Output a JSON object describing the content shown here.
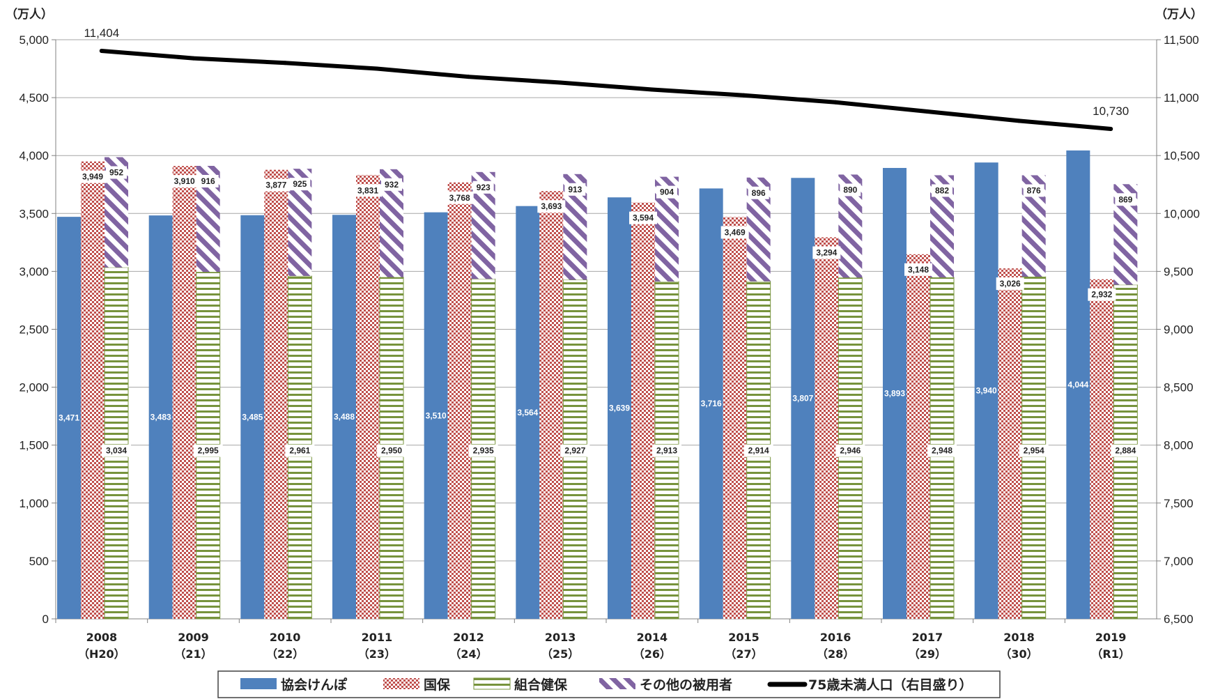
{
  "chart_data": {
    "type": "bar",
    "left_axis_unit": "（万人）",
    "right_axis_unit": "（万人）",
    "categories": [
      "2008",
      "2009",
      "2010",
      "2011",
      "2012",
      "2013",
      "2014",
      "2015",
      "2016",
      "2017",
      "2018",
      "2019"
    ],
    "category_sublabels": [
      "（H20）",
      "（21）",
      "（22）",
      "（23）",
      "（24）",
      "（25）",
      "（26）",
      "（27）",
      "（28）",
      "（29）",
      "（30）",
      "（R1）"
    ],
    "y_left": {
      "min": 0,
      "max": 5000,
      "step": 500,
      "ticks": [
        "0",
        "500",
        "1,000",
        "1,500",
        "2,000",
        "2,500",
        "3,000",
        "3,500",
        "4,000",
        "4,500",
        "5,000"
      ]
    },
    "y_right": {
      "min": 6500,
      "max": 11500,
      "step": 500,
      "ticks": [
        "6,500",
        "7,000",
        "7,500",
        "8,000",
        "8,500",
        "9,000",
        "9,500",
        "10,000",
        "10,500",
        "11,000",
        "11,500"
      ]
    },
    "grid": true,
    "legend_position": "bottom",
    "series": [
      {
        "name": "協会けんぽ",
        "kind": "bar",
        "color": "#4f81bd",
        "values": [
          3471,
          3483,
          3485,
          3488,
          3510,
          3564,
          3639,
          3716,
          3807,
          3893,
          3940,
          4044
        ],
        "labels": [
          "3,471",
          "3,483",
          "3,485",
          "3,488",
          "3,510",
          "3,564",
          "3,639",
          "3,716",
          "3,807",
          "3,893",
          "3,940",
          "4,044"
        ]
      },
      {
        "name": "国保",
        "kind": "bar",
        "color": "#c0504d",
        "values": [
          3949,
          3910,
          3877,
          3831,
          3768,
          3693,
          3594,
          3469,
          3294,
          3148,
          3026,
          2932
        ],
        "labels": [
          "3,949",
          "3,910",
          "3,877",
          "3,831",
          "3,768",
          "3,693",
          "3,594",
          "3,469",
          "3,294",
          "3,148",
          "3,026",
          "2,932"
        ]
      },
      {
        "name": "組合健保",
        "kind": "stack-base",
        "color": "#77933c",
        "values": [
          3034,
          2995,
          2961,
          2950,
          2935,
          2927,
          2913,
          2914,
          2946,
          2948,
          2954,
          2884
        ],
        "labels": [
          "3,034",
          "2,995",
          "2,961",
          "2,950",
          "2,935",
          "2,927",
          "2,913",
          "2,914",
          "2,946",
          "2,948",
          "2,954",
          "2,884"
        ]
      },
      {
        "name": "その他の被用者",
        "kind": "stack-top",
        "color": "#8064a2",
        "values": [
          952,
          916,
          925,
          932,
          923,
          913,
          904,
          896,
          890,
          882,
          876,
          869
        ],
        "labels": [
          "952",
          "916",
          "925",
          "932",
          "923",
          "913",
          "904",
          "896",
          "890",
          "882",
          "876",
          "869"
        ]
      },
      {
        "name": "75歳未満人口（右目盛り）",
        "kind": "line",
        "axis": "right",
        "color": "#000000",
        "values": [
          11404,
          11340,
          11300,
          11250,
          11180,
          11130,
          11070,
          11020,
          10960,
          10880,
          10800,
          10730
        ],
        "labels": [
          "11,404",
          "",
          "",
          "",
          "",
          "",
          "",
          "",
          "",
          "",
          "",
          "10,730"
        ]
      }
    ]
  }
}
